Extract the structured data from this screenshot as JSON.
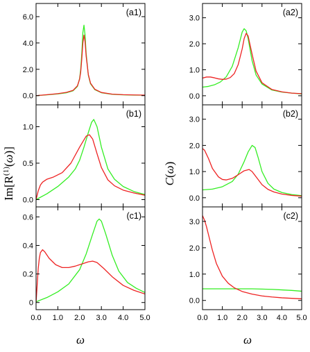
{
  "figure": {
    "xlabel": "ω",
    "ylabel_left": "Im[R^(1)(ω)]",
    "ylabel_right": "C(ω)",
    "colors": {
      "green": "#33ee22",
      "red": "#ee2222"
    }
  },
  "chart_data": [
    {
      "id": "a1",
      "type": "line",
      "label": "(a1)",
      "xlim": [
        0,
        5
      ],
      "ylim": [
        -0.7,
        7.0
      ],
      "xticks": [],
      "yticks": [
        0,
        2,
        4,
        6
      ],
      "yticklabels": [
        "0.0",
        "2.0",
        "4.0",
        "6.0"
      ],
      "series": [
        {
          "color": "green",
          "x": [
            0,
            0.5,
            1.0,
            1.4,
            1.7,
            1.9,
            2.0,
            2.05,
            2.1,
            2.15,
            2.2,
            2.25,
            2.3,
            2.4,
            2.5,
            2.7,
            3.0,
            3.5,
            4.0,
            4.5,
            5.0
          ],
          "y": [
            0.0,
            0.06,
            0.13,
            0.22,
            0.37,
            0.7,
            1.3,
            2.0,
            3.2,
            4.8,
            5.35,
            4.6,
            3.2,
            1.55,
            0.9,
            0.45,
            0.22,
            0.1,
            0.06,
            0.04,
            0.03
          ]
        },
        {
          "color": "red",
          "x": [
            0,
            0.5,
            1.0,
            1.4,
            1.7,
            1.9,
            2.0,
            2.05,
            2.1,
            2.15,
            2.2,
            2.25,
            2.3,
            2.4,
            2.5,
            2.7,
            3.0,
            3.5,
            4.0,
            4.5,
            5.0
          ],
          "y": [
            0.0,
            0.07,
            0.15,
            0.25,
            0.4,
            0.75,
            1.25,
            1.8,
            2.8,
            4.0,
            4.6,
            4.1,
            3.0,
            1.6,
            0.95,
            0.48,
            0.24,
            0.11,
            0.07,
            0.05,
            0.04
          ]
        }
      ]
    },
    {
      "id": "a2",
      "type": "line",
      "label": "(a2)",
      "xlim": [
        0,
        5
      ],
      "ylim": [
        -0.35,
        3.55
      ],
      "xticks": [],
      "yticks": [
        0,
        1,
        2,
        3
      ],
      "yticklabels": [
        "0.0",
        "1.0",
        "2.0",
        "3.0"
      ],
      "series": [
        {
          "color": "green",
          "x": [
            0,
            0.3,
            0.6,
            0.9,
            1.2,
            1.5,
            1.8,
            2.0,
            2.1,
            2.2,
            2.3,
            2.5,
            2.7,
            3.0,
            3.5,
            4.0,
            4.5,
            5.0
          ],
          "y": [
            0.33,
            0.36,
            0.42,
            0.53,
            0.73,
            1.13,
            1.85,
            2.45,
            2.58,
            2.5,
            2.2,
            1.35,
            0.8,
            0.45,
            0.22,
            0.14,
            0.1,
            0.07
          ]
        },
        {
          "color": "red",
          "x": [
            0,
            0.2,
            0.4,
            0.6,
            0.8,
            1.0,
            1.2,
            1.4,
            1.6,
            1.8,
            2.0,
            2.1,
            2.2,
            2.3,
            2.5,
            2.7,
            3.0,
            3.5,
            4.0,
            4.5,
            5.0
          ],
          "y": [
            0.68,
            0.72,
            0.72,
            0.69,
            0.65,
            0.63,
            0.64,
            0.7,
            0.85,
            1.2,
            1.8,
            2.2,
            2.4,
            2.3,
            1.6,
            0.95,
            0.5,
            0.24,
            0.15,
            0.1,
            0.08
          ]
        }
      ]
    },
    {
      "id": "b1",
      "type": "line",
      "label": "(b1)",
      "xlim": [
        0,
        5
      ],
      "ylim": [
        -0.1,
        1.3
      ],
      "xticks": [],
      "yticks": [
        0,
        0.5,
        1.0
      ],
      "yticklabels": [
        "0.0",
        "0.5",
        "1.0"
      ],
      "series": [
        {
          "color": "green",
          "x": [
            0,
            0.5,
            1.0,
            1.5,
            1.8,
            2.0,
            2.2,
            2.4,
            2.55,
            2.65,
            2.8,
            3.0,
            3.3,
            3.6,
            4.0,
            4.5,
            5.0
          ],
          "y": [
            0.0,
            0.08,
            0.18,
            0.31,
            0.42,
            0.54,
            0.72,
            0.92,
            1.06,
            1.1,
            1.0,
            0.72,
            0.42,
            0.28,
            0.18,
            0.11,
            0.07
          ]
        },
        {
          "color": "red",
          "x": [
            0,
            0.1,
            0.2,
            0.3,
            0.5,
            0.8,
            1.2,
            1.6,
            2.0,
            2.3,
            2.45,
            2.6,
            2.8,
            3.0,
            3.3,
            3.6,
            4.0,
            4.5,
            5.0
          ],
          "y": [
            0.0,
            0.12,
            0.2,
            0.24,
            0.28,
            0.31,
            0.37,
            0.5,
            0.72,
            0.87,
            0.89,
            0.83,
            0.63,
            0.44,
            0.27,
            0.19,
            0.13,
            0.09,
            0.06
          ]
        }
      ]
    },
    {
      "id": "b2",
      "type": "line",
      "label": "(b2)",
      "xlim": [
        0,
        5
      ],
      "ylim": [
        -0.35,
        3.55
      ],
      "xticks": [],
      "yticks": [
        0,
        1,
        2,
        3
      ],
      "yticklabels": [
        "0.0",
        "1.0",
        "2.0",
        "3.0"
      ],
      "series": [
        {
          "color": "green",
          "x": [
            0,
            0.5,
            1.0,
            1.5,
            1.8,
            2.1,
            2.3,
            2.5,
            2.65,
            2.8,
            3.0,
            3.3,
            3.6,
            4.0,
            4.5,
            5.0
          ],
          "y": [
            0.3,
            0.33,
            0.42,
            0.62,
            0.9,
            1.38,
            1.75,
            2.0,
            1.92,
            1.55,
            1.0,
            0.55,
            0.33,
            0.2,
            0.12,
            0.08
          ]
        },
        {
          "color": "red",
          "x": [
            0,
            0.1,
            0.3,
            0.5,
            0.8,
            1.0,
            1.2,
            1.5,
            1.8,
            2.1,
            2.35,
            2.5,
            2.7,
            3.0,
            3.3,
            3.6,
            4.0,
            4.5,
            5.0
          ],
          "y": [
            1.88,
            1.82,
            1.5,
            1.12,
            0.8,
            0.7,
            0.68,
            0.74,
            0.88,
            1.03,
            1.08,
            1.0,
            0.8,
            0.5,
            0.32,
            0.22,
            0.14,
            0.09,
            0.06
          ]
        }
      ]
    },
    {
      "id": "c1",
      "type": "line",
      "label": "(c1)",
      "xlim": [
        0,
        5
      ],
      "ylim": [
        -0.05,
        0.67
      ],
      "xticks": [
        0,
        1,
        2,
        3,
        4,
        5
      ],
      "xticklabels": [
        "0.0",
        "1.0",
        "2.0",
        "3.0",
        "4.0",
        "5.0"
      ],
      "yticks": [
        0,
        0.2,
        0.4,
        0.6
      ],
      "yticklabels": [
        "0",
        "0.2",
        "0.4",
        "0.6"
      ],
      "series": [
        {
          "color": "green",
          "x": [
            0,
            0.5,
            1.0,
            1.5,
            2.0,
            2.3,
            2.6,
            2.8,
            2.9,
            3.0,
            3.2,
            3.5,
            3.8,
            4.2,
            4.6,
            5.0
          ],
          "y": [
            0.005,
            0.035,
            0.075,
            0.13,
            0.23,
            0.34,
            0.48,
            0.57,
            0.585,
            0.57,
            0.48,
            0.33,
            0.22,
            0.14,
            0.1,
            0.07
          ]
        },
        {
          "color": "red",
          "x": [
            0,
            0.05,
            0.1,
            0.15,
            0.2,
            0.3,
            0.4,
            0.6,
            0.9,
            1.2,
            1.5,
            1.8,
            2.1,
            2.4,
            2.6,
            2.8,
            3.1,
            3.5,
            4.0,
            4.5,
            5.0
          ],
          "y": [
            0.0,
            0.12,
            0.24,
            0.31,
            0.35,
            0.37,
            0.355,
            0.31,
            0.265,
            0.245,
            0.245,
            0.255,
            0.27,
            0.285,
            0.29,
            0.28,
            0.24,
            0.18,
            0.12,
            0.085,
            0.06
          ]
        }
      ]
    },
    {
      "id": "c2",
      "type": "line",
      "label": "(c2)",
      "xlim": [
        0,
        5
      ],
      "ylim": [
        -0.35,
        3.55
      ],
      "xticks": [
        0,
        1,
        2,
        3,
        4,
        5
      ],
      "xticklabels": [
        "0.0",
        "1.0",
        "2.0",
        "3.0",
        "4.0",
        "5.0"
      ],
      "yticks": [
        0,
        1,
        2,
        3
      ],
      "yticklabels": [
        "0.0",
        "1.0",
        "2.0",
        "3.0"
      ],
      "series": [
        {
          "color": "green",
          "x": [
            0,
            0.5,
            1.0,
            1.5,
            2.0,
            2.5,
            3.0,
            3.5,
            4.0,
            4.5,
            5.0
          ],
          "y": [
            0.44,
            0.44,
            0.44,
            0.44,
            0.44,
            0.44,
            0.43,
            0.42,
            0.4,
            0.38,
            0.35
          ]
        },
        {
          "color": "red",
          "x": [
            0,
            0.1,
            0.2,
            0.3,
            0.5,
            0.7,
            1.0,
            1.3,
            1.6,
            2.0,
            2.5,
            3.0,
            3.5,
            4.0,
            4.5,
            5.0
          ],
          "y": [
            3.22,
            3.05,
            2.8,
            2.5,
            1.9,
            1.4,
            0.92,
            0.65,
            0.48,
            0.34,
            0.24,
            0.17,
            0.13,
            0.1,
            0.08,
            0.06
          ]
        }
      ]
    }
  ]
}
